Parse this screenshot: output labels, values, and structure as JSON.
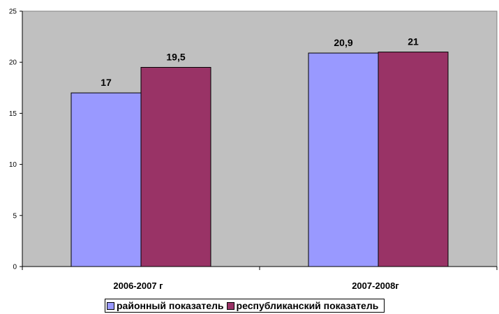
{
  "colors": {
    "plot_background": "#c0c0c0",
    "series_1": "#9999ff",
    "series_2": "#993366"
  },
  "legend": {
    "items": [
      {
        "label": "районный показатель",
        "color": "#9999ff"
      },
      {
        "label": "республиканский показатель",
        "color": "#993366"
      }
    ]
  },
  "chart_data": {
    "type": "bar",
    "categories": [
      "2006-2007 г",
      "2007-2008г"
    ],
    "series": [
      {
        "name": "районный показатель",
        "values": [
          17,
          20.9
        ],
        "value_labels": [
          "17",
          "20,9"
        ]
      },
      {
        "name": "республиканский показатель",
        "values": [
          19.5,
          21
        ],
        "value_labels": [
          "19,5",
          "21"
        ]
      }
    ],
    "ylim": [
      0,
      25
    ],
    "yticks": [
      0,
      5,
      10,
      15,
      20,
      25
    ],
    "grid": false,
    "legend_position": "bottom"
  }
}
